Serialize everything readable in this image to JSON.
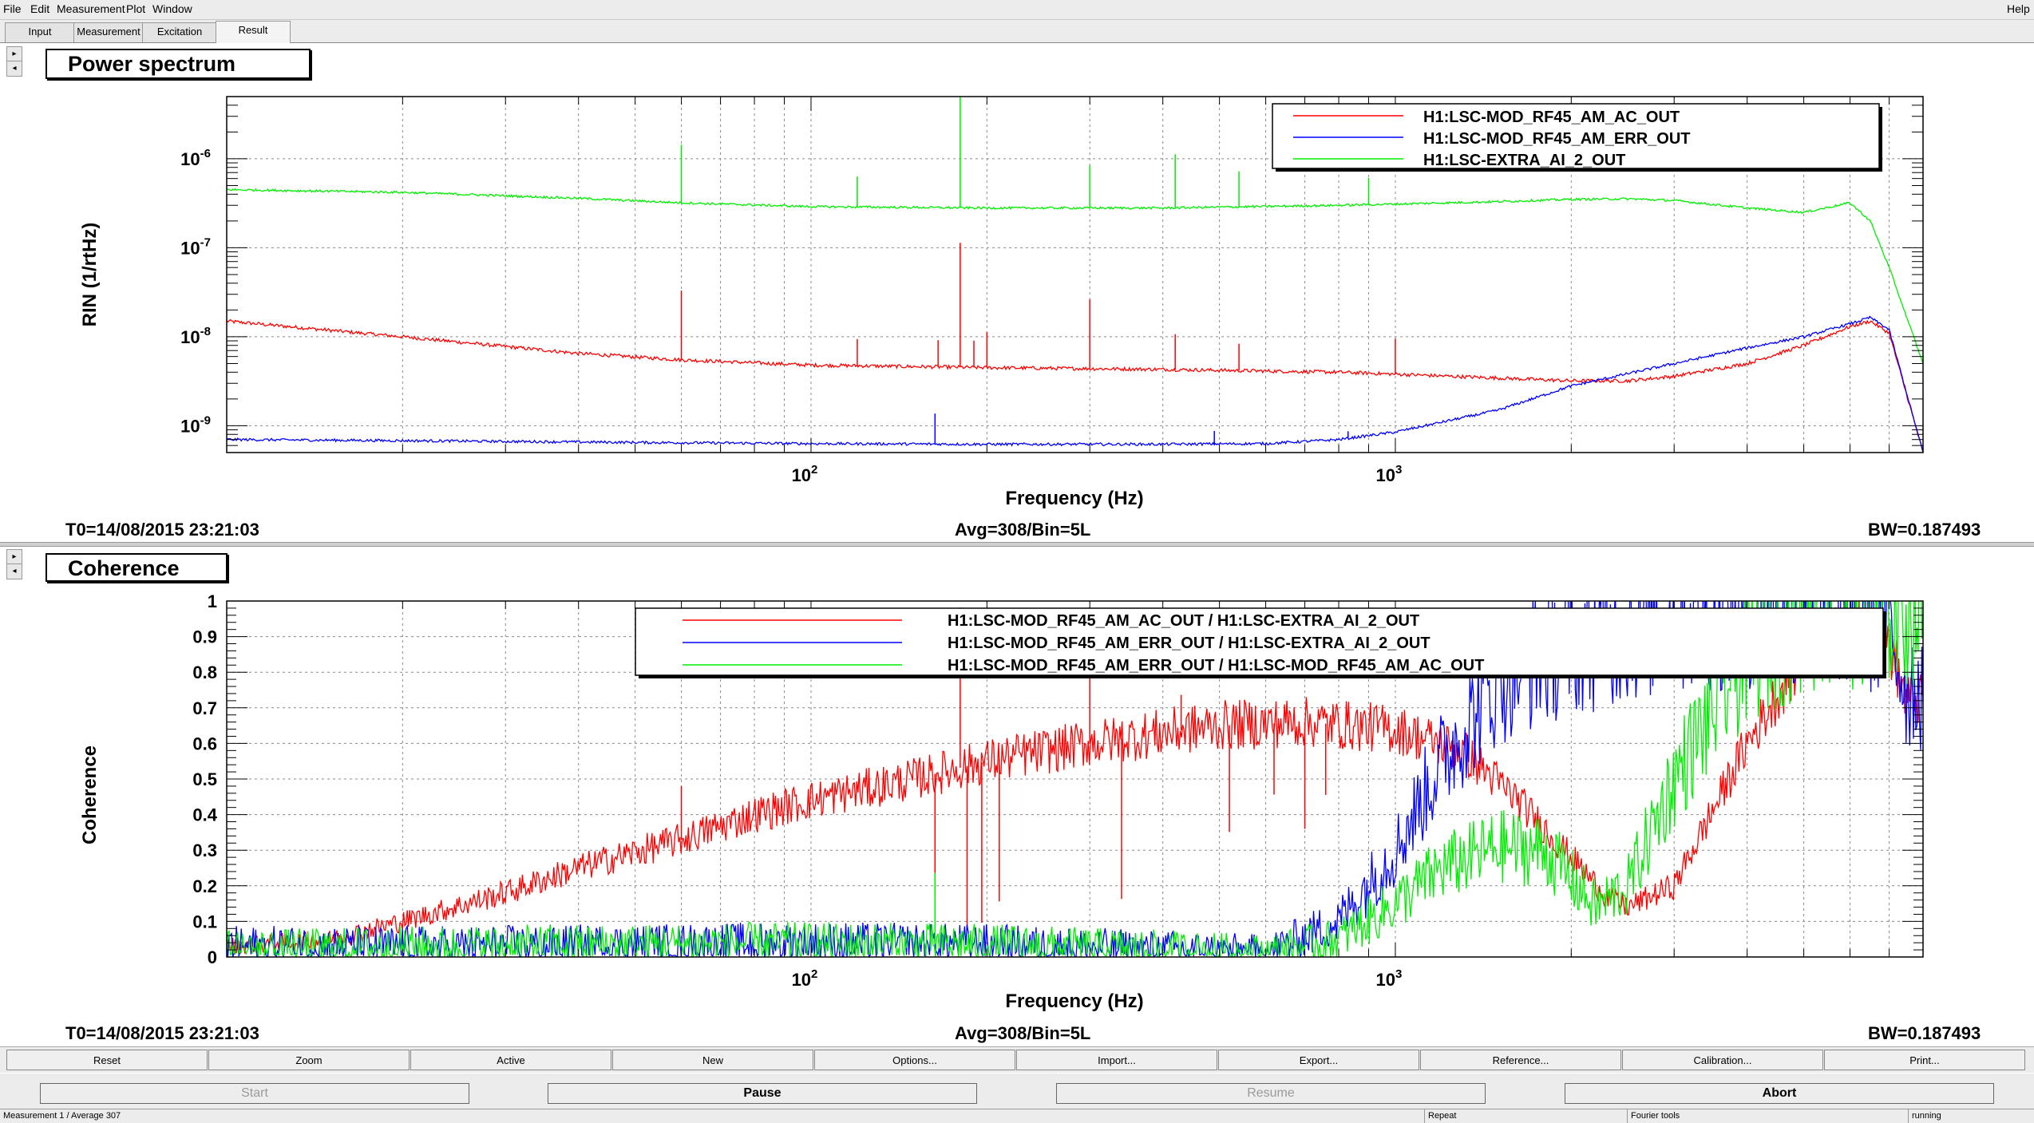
{
  "menubar": {
    "file": "File",
    "edit": "Edit",
    "measurement": "Measurement",
    "plot": "Plot",
    "window": "Window",
    "help": "Help"
  },
  "tabs": [
    "Input",
    "Measurement",
    "Excitation",
    "Result"
  ],
  "active_tab": "Result",
  "panels": [
    {
      "title": "Power spectrum",
      "ylabel": "RIN (1/rtHz)",
      "xlabel": "Frequency (Hz)",
      "footer_left": "T0=14/08/2015 23:21:03",
      "footer_center": "Avg=308/Bin=5L",
      "footer_right": "BW=0.187493"
    },
    {
      "title": "Coherence",
      "ylabel": "Coherence",
      "xlabel": "Frequency (Hz)",
      "footer_left": "T0=14/08/2015 23:21:03",
      "footer_center": "Avg=308/Bin=5L",
      "footer_right": "BW=0.187493"
    }
  ],
  "chart_data": [
    {
      "type": "line",
      "title": "Power spectrum",
      "xlabel": "Frequency (Hz)",
      "ylabel": "RIN (1/rtHz)",
      "xscale": "log",
      "yscale": "log",
      "xlim": [
        10,
        8000
      ],
      "ylim": [
        5e-10,
        5e-06
      ],
      "xticks": [
        "10^2",
        "10^3"
      ],
      "yticks": [
        "10^-9",
        "10^-8",
        "10^-7",
        "10^-6"
      ],
      "grid": true,
      "legend_position": "top-right",
      "series": [
        {
          "name": "H1:LSC-MOD_RF45_AM_AC_OUT",
          "color": "#ff0000",
          "x": [
            10,
            20,
            40,
            60,
            100,
            200,
            400,
            800,
            1000,
            2000,
            2500,
            3000,
            4000,
            5000,
            6000,
            6500,
            7000,
            8000
          ],
          "y": [
            1.5e-08,
            1e-08,
            6.5e-09,
            5.5e-09,
            4.8e-09,
            4.5e-09,
            4.3e-09,
            4e-09,
            3.8e-09,
            3.2e-09,
            3.2e-09,
            3.6e-09,
            5e-09,
            8e-09,
            1.3e-08,
            1.5e-08,
            1.1e-08,
            5e-10
          ]
        },
        {
          "name": "H1:LSC-MOD_RF45_AM_ERR_OUT",
          "color": "#0000ff",
          "x": [
            10,
            20,
            50,
            100,
            200,
            400,
            600,
            800,
            1000,
            1500,
            2000,
            3000,
            4000,
            5000,
            6000,
            6500,
            7000,
            8000
          ],
          "y": [
            7e-10,
            6.8e-10,
            6.5e-10,
            6.3e-10,
            6.2e-10,
            6.2e-10,
            6.3e-10,
            7e-10,
            8.5e-10,
            1.5e-09,
            2.8e-09,
            5e-09,
            7.5e-09,
            1e-08,
            1.4e-08,
            1.65e-08,
            1.2e-08,
            5e-10
          ]
        },
        {
          "name": "H1:LSC-EXTRA_AI_2_OUT",
          "color": "#00ee00",
          "x": [
            10,
            20,
            40,
            60,
            100,
            200,
            400,
            800,
            1000,
            1500,
            2000,
            2500,
            3000,
            4000,
            5000,
            6000,
            6500,
            7000,
            8000
          ],
          "y": [
            4.5e-07,
            4.2e-07,
            3.6e-07,
            3.2e-07,
            2.9e-07,
            2.8e-07,
            2.8e-07,
            3e-07,
            3.1e-07,
            3.3e-07,
            3.5e-07,
            3.55e-07,
            3.4e-07,
            2.8e-07,
            2.5e-07,
            3.2e-07,
            2e-07,
            6e-08,
            5e-09
          ]
        }
      ]
    },
    {
      "type": "line",
      "title": "Coherence",
      "xlabel": "Frequency (Hz)",
      "ylabel": "Coherence",
      "xscale": "log",
      "yscale": "linear",
      "xlim": [
        10,
        8000
      ],
      "ylim": [
        0,
        1
      ],
      "xticks": [
        "10^2",
        "10^3"
      ],
      "yticks": [
        "0",
        "0.1",
        "0.2",
        "0.3",
        "0.4",
        "0.5",
        "0.6",
        "0.7",
        "0.8",
        "0.9",
        "1"
      ],
      "grid": true,
      "legend_position": "top",
      "series": [
        {
          "name": "H1:LSC-MOD_RF45_AM_AC_OUT / H1:LSC-EXTRA_AI_2_OUT",
          "color": "#ff0000",
          "x": [
            10,
            15,
            20,
            30,
            40,
            60,
            80,
            100,
            150,
            200,
            300,
            400,
            500,
            700,
            1000,
            1300,
            1600,
            2000,
            2300,
            2500,
            3000,
            4000,
            5000,
            6000,
            7000,
            7500
          ],
          "y": [
            0.03,
            0.05,
            0.1,
            0.18,
            0.25,
            0.33,
            0.4,
            0.44,
            0.5,
            0.55,
            0.6,
            0.63,
            0.65,
            0.66,
            0.64,
            0.58,
            0.45,
            0.28,
            0.17,
            0.14,
            0.2,
            0.6,
            0.85,
            0.92,
            0.88,
            0.72
          ]
        },
        {
          "name": "H1:LSC-MOD_RF45_AM_ERR_OUT / H1:LSC-EXTRA_AI_2_OUT",
          "color": "#0000ff",
          "x": [
            10,
            20,
            50,
            100,
            200,
            400,
            600,
            800,
            1000,
            1200,
            1500,
            1800,
            2000,
            2500,
            3000,
            4000,
            5000,
            6000,
            7000,
            7500
          ],
          "y": [
            0.03,
            0.03,
            0.035,
            0.04,
            0.035,
            0.02,
            0.01,
            0.1,
            0.3,
            0.55,
            0.78,
            0.85,
            0.88,
            0.92,
            0.95,
            0.97,
            0.98,
            0.98,
            0.92,
            0.76
          ]
        },
        {
          "name": "H1:LSC-MOD_RF45_AM_ERR_OUT / H1:LSC-MOD_RF45_AM_AC_OUT",
          "color": "#00ee00",
          "x": [
            10,
            20,
            50,
            100,
            200,
            400,
            600,
            800,
            1000,
            1200,
            1500,
            1800,
            2000,
            2200,
            2500,
            3000,
            4000,
            5000,
            6000,
            7000,
            7500
          ],
          "y": [
            0.02,
            0.03,
            0.035,
            0.04,
            0.035,
            0.02,
            0.01,
            0.05,
            0.15,
            0.25,
            0.31,
            0.3,
            0.22,
            0.14,
            0.2,
            0.5,
            0.85,
            0.95,
            0.97,
            0.98,
            0.98
          ]
        }
      ]
    }
  ],
  "toolbar": [
    "Reset",
    "Zoom",
    "Active",
    "New",
    "Options...",
    "Import...",
    "Export...",
    "Reference...",
    "Calibration...",
    "Print..."
  ],
  "controls": {
    "start": "Start",
    "pause": "Pause",
    "resume": "Resume",
    "abort": "Abort"
  },
  "status": {
    "left": "Measurement 1 / Average 307",
    "repeat": "Repeat",
    "tools": "Fourier tools",
    "state": "running"
  }
}
